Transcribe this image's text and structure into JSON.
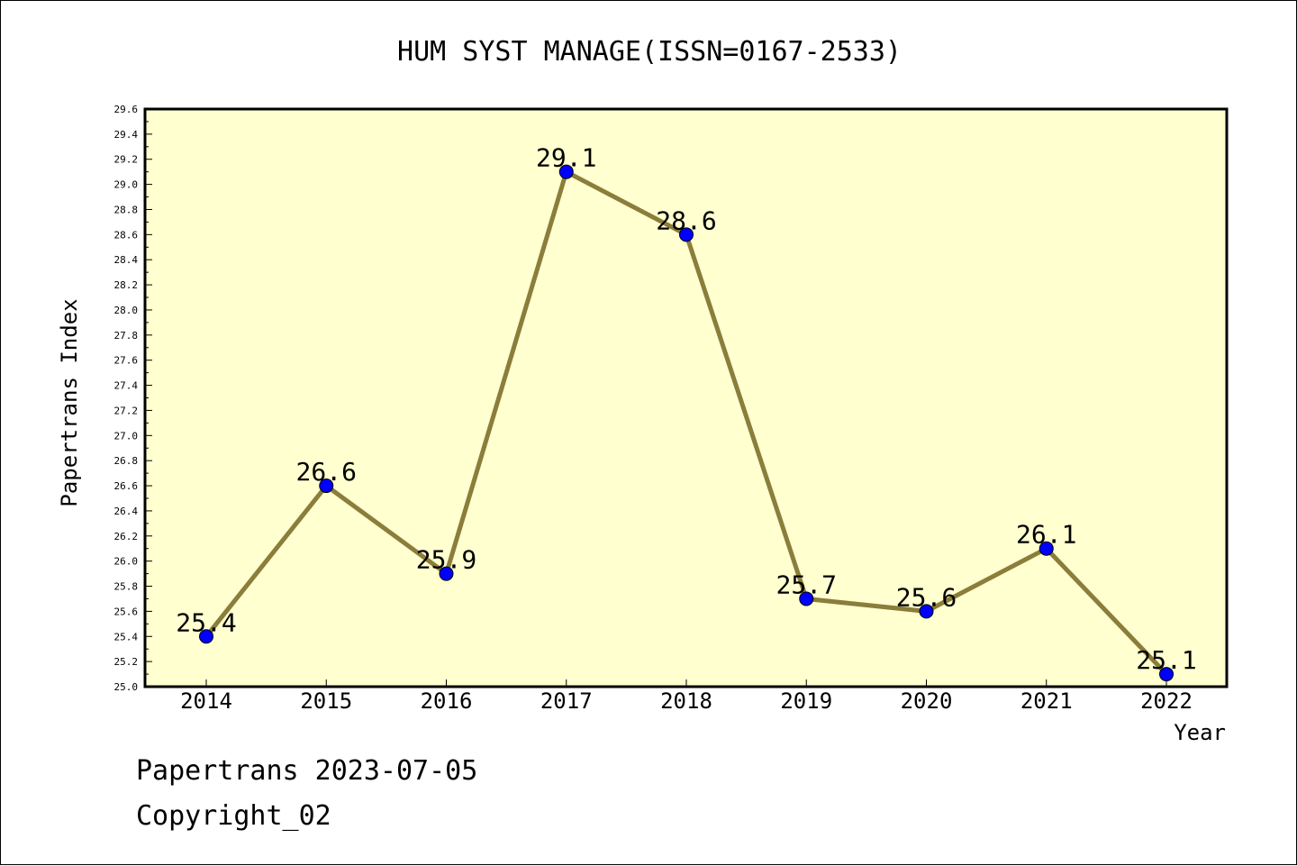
{
  "chart_data": {
    "type": "line",
    "title": "HUM SYST MANAGE(ISSN=0167-2533)",
    "xlabel": "Year",
    "ylabel": "Papertrans Index",
    "x": [
      "2014",
      "2015",
      "2016",
      "2017",
      "2018",
      "2019",
      "2020",
      "2021",
      "2022"
    ],
    "series": [
      {
        "values": [
          25.4,
          26.6,
          25.9,
          29.1,
          28.6,
          25.7,
          25.6,
          26.1,
          25.1
        ],
        "data_labels": [
          "25.4",
          "26.6",
          "25.9",
          "29.1",
          "28.6",
          "25.7",
          "25.6",
          "26.1",
          "25.1"
        ]
      }
    ],
    "ylim": [
      25.0,
      29.6
    ],
    "y_ticks": [
      "25.0",
      "25.2",
      "25.4",
      "25.6",
      "25.8",
      "26.0",
      "26.2",
      "26.4",
      "26.6",
      "26.8",
      "27.0",
      "27.2",
      "27.4",
      "27.6",
      "27.8",
      "28.0",
      "28.2",
      "28.4",
      "28.6",
      "28.8",
      "29.0",
      "29.2",
      "29.4",
      "29.6"
    ],
    "grid": false,
    "colors": {
      "plot_background": "#ffffd0",
      "line": "#8b7d3a",
      "marker": "#0000ff"
    }
  },
  "footer": {
    "line1": "Papertrans 2023-07-05",
    "line2": "Copyright_02"
  }
}
